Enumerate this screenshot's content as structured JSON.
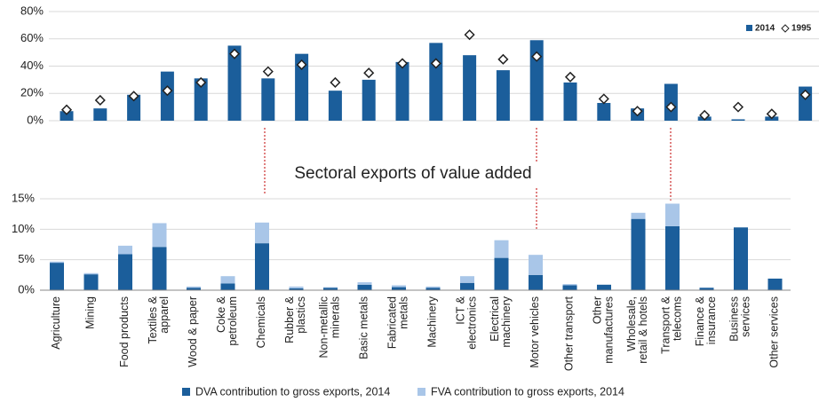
{
  "chart_data": [
    {
      "type": "bar_marker",
      "categories": [
        null,
        null,
        null,
        null,
        null,
        null,
        null,
        null,
        null,
        null,
        null,
        null,
        null,
        null,
        null,
        null,
        null,
        null,
        null,
        null,
        null,
        null,
        null
      ],
      "series": [
        {
          "name": "2014",
          "color": "#1b5e9b",
          "values": [
            7,
            9,
            19,
            36,
            31,
            55,
            31,
            49,
            22,
            30,
            43,
            57,
            48,
            37,
            59,
            28,
            13,
            9,
            27,
            3,
            1,
            3,
            25
          ]
        },
        {
          "name": "1995",
          "color": "#ffffff",
          "values": [
            8,
            15,
            18,
            22,
            28,
            49,
            36,
            41,
            28,
            35,
            42,
            42,
            63,
            45,
            47,
            32,
            16,
            7,
            10,
            4,
            10,
            5,
            19
          ]
        }
      ],
      "ylim": [
        0,
        80
      ],
      "yticks": [
        {
          "value": 0,
          "label": "0%"
        },
        {
          "value": 20,
          "label": "20%"
        },
        {
          "value": 40,
          "label": "40%"
        },
        {
          "value": 60,
          "label": "60%"
        },
        {
          "value": 80,
          "label": "80%"
        }
      ],
      "grid": true,
      "legend": "top-right"
    },
    {
      "type": "stacked_bar",
      "title": "Sectoral exports of value added",
      "categories": [
        "Agriculture",
        "Mining",
        "Food products",
        "Textiles &\napparel",
        "Wood & paper",
        "Coke &\npetroleum",
        "Chemicals",
        "Rubber &\nplastics",
        "Non-metallic\nminerals",
        "Basic metals",
        "Fabricated\nmetals",
        "Machinery",
        "ICT &\nelectronics",
        "Electrical\nmachinery",
        "Motor vehicles",
        "Other transport",
        "Other\nmanufactures",
        "Wholesale,\nretail & hotels",
        "Transport &\ntelecoms",
        "Finance &\ninsurance",
        "Business\nservices",
        "Other services"
      ],
      "series": [
        {
          "name": "DVA contribution to gross exports, 2014",
          "color": "#1b5e9b",
          "values": [
            4.5,
            2.6,
            5.9,
            7.1,
            0.4,
            1.1,
            7.7,
            0.3,
            0.4,
            0.9,
            0.5,
            0.4,
            1.2,
            5.3,
            2.5,
            0.8,
            0.9,
            11.7,
            10.5,
            0.4,
            10.3,
            1.9
          ]
        },
        {
          "name": "FVA contribution to gross exports, 2014",
          "color": "#a9c6e8",
          "values": [
            0.2,
            0.2,
            1.4,
            3.9,
            0.2,
            1.2,
            3.4,
            0.3,
            0.1,
            0.4,
            0.3,
            0.2,
            1.1,
            2.9,
            3.3,
            0.2,
            0,
            1.0,
            3.7,
            0.05,
            0,
            0
          ]
        }
      ],
      "ylim": [
        0,
        15
      ],
      "yticks": [
        {
          "value": 0,
          "label": "0%"
        },
        {
          "value": 5,
          "label": "5%"
        },
        {
          "value": 10,
          "label": "10%"
        },
        {
          "value": 15,
          "label": "15%"
        }
      ],
      "grid": true,
      "legend": "bottom"
    }
  ]
}
